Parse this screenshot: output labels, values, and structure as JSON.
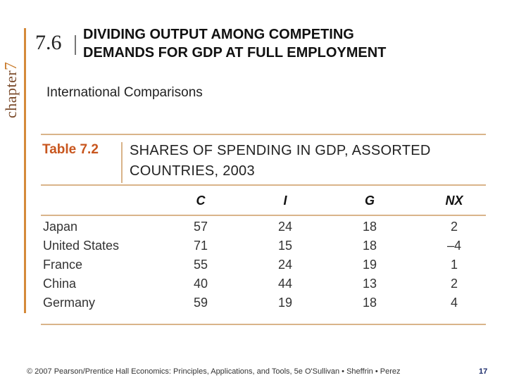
{
  "chapter": {
    "word": "chapter",
    "number": "7"
  },
  "section": {
    "number": "7.6",
    "title_line1": "DIVIDING OUTPUT AMONG COMPETING",
    "title_line2": "DEMANDS FOR GDP AT FULL EMPLOYMENT"
  },
  "subtitle": "International Comparisons",
  "table": {
    "label": "Table 7.2",
    "caption_line1": "SHARES OF SPENDING IN GDP, ASSORTED",
    "caption_line2": "COUNTRIES, 2003",
    "columns": [
      "C",
      "I",
      "G",
      "NX"
    ],
    "rows": [
      {
        "country": "Japan",
        "values": [
          "57",
          "24",
          "18",
          "2"
        ]
      },
      {
        "country": "United States",
        "values": [
          "71",
          "15",
          "18",
          "–4"
        ]
      },
      {
        "country": "France",
        "values": [
          "55",
          "24",
          "19",
          "1"
        ]
      },
      {
        "country": "China",
        "values": [
          "40",
          "44",
          "13",
          "2"
        ]
      },
      {
        "country": "Germany",
        "values": [
          "59",
          "19",
          "18",
          "4"
        ]
      }
    ]
  },
  "footer": "© 2007 Pearson/Prentice Hall   Economics: Principles, Applications, and Tools, 5e   O'Sullivan • Sheffrin • Perez",
  "page_number": "17",
  "colors": {
    "accent_orange": "#d58a3a",
    "table_label": "#c8561e",
    "rule": "#d9b48a"
  }
}
